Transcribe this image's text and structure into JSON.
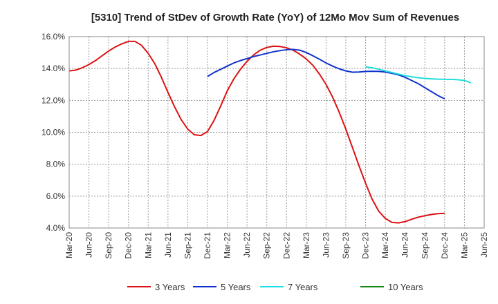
{
  "chart_data": {
    "type": "line",
    "title": "[5310]  Trend of StDev of Growth Rate (YoY) of 12Mo Mov Sum of Revenues",
    "xlabel": "",
    "ylabel": "",
    "ylim": [
      4.0,
      16.0
    ],
    "yticks": [
      4.0,
      6.0,
      8.0,
      10.0,
      12.0,
      14.0,
      16.0
    ],
    "ytick_labels": [
      "4.0%",
      "6.0%",
      "8.0%",
      "10.0%",
      "12.0%",
      "14.0%",
      "16.0%"
    ],
    "x_start": "Mar-20",
    "x_end": "Jun-25",
    "xtick_labels": [
      "Mar-20",
      "Jun-20",
      "Sep-20",
      "Dec-20",
      "Mar-21",
      "Jun-21",
      "Sep-21",
      "Dec-21",
      "Mar-22",
      "Jun-22",
      "Sep-22",
      "Dec-22",
      "Mar-23",
      "Jun-23",
      "Sep-23",
      "Dec-23",
      "Mar-24",
      "Jun-24",
      "Sep-24",
      "Dec-24",
      "Mar-25",
      "Jun-25"
    ],
    "grid": true,
    "legend_position": "bottom",
    "series": [
      {
        "name": "3 Years",
        "color": "#dd1111",
        "start_month_index": 0,
        "values": [
          13.85,
          13.9,
          14.05,
          14.25,
          14.5,
          14.8,
          15.1,
          15.35,
          15.55,
          15.7,
          15.7,
          15.45,
          14.95,
          14.3,
          13.45,
          12.5,
          11.6,
          10.8,
          10.2,
          9.85,
          9.8,
          10.05,
          10.75,
          11.65,
          12.6,
          13.35,
          13.95,
          14.45,
          14.85,
          15.15,
          15.32,
          15.4,
          15.38,
          15.3,
          15.15,
          14.9,
          14.6,
          14.2,
          13.65,
          13.0,
          12.2,
          11.25,
          10.2,
          9.05,
          7.9,
          6.8,
          5.8,
          5.05,
          4.6,
          4.35,
          4.32,
          4.4,
          4.55,
          4.68,
          4.77,
          4.85,
          4.9,
          4.92
        ]
      },
      {
        "name": "5 Years",
        "color": "#1133cc",
        "start_month_index": 21,
        "values": [
          13.5,
          13.75,
          13.95,
          14.15,
          14.35,
          14.5,
          14.62,
          14.75,
          14.85,
          14.95,
          15.05,
          15.12,
          15.18,
          15.2,
          15.15,
          15.0,
          14.8,
          14.58,
          14.35,
          14.15,
          13.98,
          13.85,
          13.77,
          13.78,
          13.82,
          13.83,
          13.82,
          13.78,
          13.7,
          13.6,
          13.45,
          13.25,
          13.05,
          12.8,
          12.55,
          12.3,
          12.1
        ]
      },
      {
        "name": "7 Years",
        "color": "#22dddd",
        "start_month_index": 45,
        "values": [
          14.1,
          14.05,
          13.95,
          13.85,
          13.75,
          13.65,
          13.55,
          13.48,
          13.42,
          13.38,
          13.35,
          13.33,
          13.32,
          13.32,
          13.3,
          13.25,
          13.1
        ]
      },
      {
        "name": "10 Years",
        "color": "#118811",
        "start_month_index": 0,
        "values": []
      }
    ]
  }
}
